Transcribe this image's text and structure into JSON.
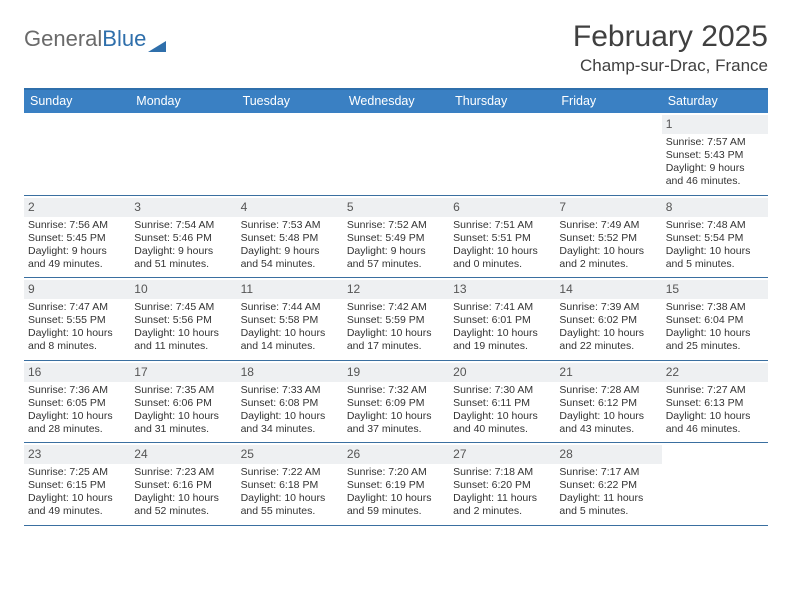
{
  "brand": {
    "part1": "General",
    "part2": "Blue"
  },
  "title": "February 2025",
  "location": "Champ-sur-Drac, France",
  "colors": {
    "header_bar": "#3a80c3",
    "rule": "#3a6fa0",
    "daynum_bg": "#eef0f2",
    "text": "#333333"
  },
  "dow": [
    "Sunday",
    "Monday",
    "Tuesday",
    "Wednesday",
    "Thursday",
    "Friday",
    "Saturday"
  ],
  "weeks": [
    [
      {
        "n": "",
        "empty": true
      },
      {
        "n": "",
        "empty": true
      },
      {
        "n": "",
        "empty": true
      },
      {
        "n": "",
        "empty": true
      },
      {
        "n": "",
        "empty": true
      },
      {
        "n": "",
        "empty": true
      },
      {
        "n": "1",
        "sunrise": "7:57 AM",
        "sunset": "5:43 PM",
        "daylight": "9 hours and 46 minutes."
      }
    ],
    [
      {
        "n": "2",
        "sunrise": "7:56 AM",
        "sunset": "5:45 PM",
        "daylight": "9 hours and 49 minutes."
      },
      {
        "n": "3",
        "sunrise": "7:54 AM",
        "sunset": "5:46 PM",
        "daylight": "9 hours and 51 minutes."
      },
      {
        "n": "4",
        "sunrise": "7:53 AM",
        "sunset": "5:48 PM",
        "daylight": "9 hours and 54 minutes."
      },
      {
        "n": "5",
        "sunrise": "7:52 AM",
        "sunset": "5:49 PM",
        "daylight": "9 hours and 57 minutes."
      },
      {
        "n": "6",
        "sunrise": "7:51 AM",
        "sunset": "5:51 PM",
        "daylight": "10 hours and 0 minutes."
      },
      {
        "n": "7",
        "sunrise": "7:49 AM",
        "sunset": "5:52 PM",
        "daylight": "10 hours and 2 minutes."
      },
      {
        "n": "8",
        "sunrise": "7:48 AM",
        "sunset": "5:54 PM",
        "daylight": "10 hours and 5 minutes."
      }
    ],
    [
      {
        "n": "9",
        "sunrise": "7:47 AM",
        "sunset": "5:55 PM",
        "daylight": "10 hours and 8 minutes."
      },
      {
        "n": "10",
        "sunrise": "7:45 AM",
        "sunset": "5:56 PM",
        "daylight": "10 hours and 11 minutes."
      },
      {
        "n": "11",
        "sunrise": "7:44 AM",
        "sunset": "5:58 PM",
        "daylight": "10 hours and 14 minutes."
      },
      {
        "n": "12",
        "sunrise": "7:42 AM",
        "sunset": "5:59 PM",
        "daylight": "10 hours and 17 minutes."
      },
      {
        "n": "13",
        "sunrise": "7:41 AM",
        "sunset": "6:01 PM",
        "daylight": "10 hours and 19 minutes."
      },
      {
        "n": "14",
        "sunrise": "7:39 AM",
        "sunset": "6:02 PM",
        "daylight": "10 hours and 22 minutes."
      },
      {
        "n": "15",
        "sunrise": "7:38 AM",
        "sunset": "6:04 PM",
        "daylight": "10 hours and 25 minutes."
      }
    ],
    [
      {
        "n": "16",
        "sunrise": "7:36 AM",
        "sunset": "6:05 PM",
        "daylight": "10 hours and 28 minutes."
      },
      {
        "n": "17",
        "sunrise": "7:35 AM",
        "sunset": "6:06 PM",
        "daylight": "10 hours and 31 minutes."
      },
      {
        "n": "18",
        "sunrise": "7:33 AM",
        "sunset": "6:08 PM",
        "daylight": "10 hours and 34 minutes."
      },
      {
        "n": "19",
        "sunrise": "7:32 AM",
        "sunset": "6:09 PM",
        "daylight": "10 hours and 37 minutes."
      },
      {
        "n": "20",
        "sunrise": "7:30 AM",
        "sunset": "6:11 PM",
        "daylight": "10 hours and 40 minutes."
      },
      {
        "n": "21",
        "sunrise": "7:28 AM",
        "sunset": "6:12 PM",
        "daylight": "10 hours and 43 minutes."
      },
      {
        "n": "22",
        "sunrise": "7:27 AM",
        "sunset": "6:13 PM",
        "daylight": "10 hours and 46 minutes."
      }
    ],
    [
      {
        "n": "23",
        "sunrise": "7:25 AM",
        "sunset": "6:15 PM",
        "daylight": "10 hours and 49 minutes."
      },
      {
        "n": "24",
        "sunrise": "7:23 AM",
        "sunset": "6:16 PM",
        "daylight": "10 hours and 52 minutes."
      },
      {
        "n": "25",
        "sunrise": "7:22 AM",
        "sunset": "6:18 PM",
        "daylight": "10 hours and 55 minutes."
      },
      {
        "n": "26",
        "sunrise": "7:20 AM",
        "sunset": "6:19 PM",
        "daylight": "10 hours and 59 minutes."
      },
      {
        "n": "27",
        "sunrise": "7:18 AM",
        "sunset": "6:20 PM",
        "daylight": "11 hours and 2 minutes."
      },
      {
        "n": "28",
        "sunrise": "7:17 AM",
        "sunset": "6:22 PM",
        "daylight": "11 hours and 5 minutes."
      },
      {
        "n": "",
        "empty": true
      }
    ]
  ],
  "labels": {
    "sunrise": "Sunrise: ",
    "sunset": "Sunset: ",
    "daylight": "Daylight: "
  }
}
